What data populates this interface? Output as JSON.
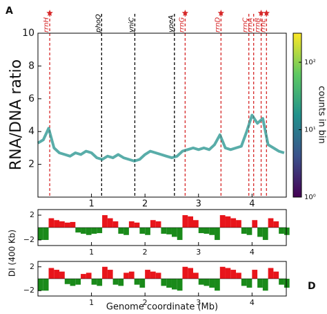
{
  "chart_data": [
    {
      "type": "line",
      "panel_label": "A",
      "ylabel": "RNA/DNA ratio",
      "color": "#21918c",
      "x": [
        0.0,
        0.1,
        0.2,
        0.3,
        0.4,
        0.5,
        0.6,
        0.7,
        0.8,
        0.9,
        1.0,
        1.1,
        1.2,
        1.3,
        1.4,
        1.5,
        1.6,
        1.7,
        1.8,
        1.9,
        2.0,
        2.1,
        2.2,
        2.3,
        2.4,
        2.5,
        2.6,
        2.7,
        2.8,
        2.9,
        3.0,
        3.1,
        3.2,
        3.3,
        3.4,
        3.5,
        3.6,
        3.7,
        3.8,
        3.9,
        4.0,
        4.1,
        4.2,
        4.3,
        4.4,
        4.5,
        4.6
      ],
      "values": [
        3.3,
        3.5,
        4.2,
        3.0,
        2.7,
        2.6,
        2.5,
        2.7,
        2.6,
        2.8,
        2.7,
        2.4,
        2.3,
        2.5,
        2.4,
        2.6,
        2.4,
        2.3,
        2.2,
        2.3,
        2.6,
        2.8,
        2.7,
        2.6,
        2.5,
        2.4,
        2.5,
        2.8,
        2.9,
        3.0,
        2.9,
        3.0,
        2.9,
        3.2,
        3.8,
        3.0,
        2.9,
        3.0,
        3.1,
        4.0,
        5.0,
        4.5,
        4.8,
        3.2,
        3.0,
        2.8,
        2.7
      ],
      "xlim": [
        0,
        4.64
      ],
      "xticks": [
        1,
        2,
        3,
        4
      ],
      "ylim": [
        0,
        10
      ],
      "yticks": [
        2,
        4,
        6,
        8,
        10
      ],
      "annotations": [
        {
          "x": 0.22,
          "label": "rrnH",
          "color": "#d62728",
          "star": true
        },
        {
          "x": 1.19,
          "label": "phoQ",
          "color": "#000000",
          "star": false
        },
        {
          "x": 1.81,
          "label": "yniC",
          "color": "#000000",
          "star": false
        },
        {
          "x": 2.55,
          "label": "ypeA",
          "color": "#000000",
          "star": false
        },
        {
          "x": 2.75,
          "label": "rrnG",
          "color": "#d62728",
          "star": true
        },
        {
          "x": 3.42,
          "label": "rrnD",
          "color": "#d62728",
          "star": true
        },
        {
          "x": 3.94,
          "label": "rrnC",
          "color": "#d62728",
          "star": false
        },
        {
          "x": 4.03,
          "label": "rrnA",
          "color": "#d62728",
          "star": false
        },
        {
          "x": 4.17,
          "label": "rrnB",
          "color": "#d62728",
          "star": true
        },
        {
          "x": 4.27,
          "label": "rrnE",
          "color": "#d62728",
          "star": true
        }
      ],
      "colorbar": {
        "label": "counts in bin",
        "log": true,
        "lim": [
          1,
          270
        ],
        "ticks": [
          {
            "value": 1,
            "label": "10⁰"
          },
          {
            "value": 10,
            "label": "10¹"
          },
          {
            "value": 100,
            "label": "10²"
          }
        ]
      }
    },
    {
      "type": "bar",
      "ylabel": "DI (400 Kb)",
      "positive_color": "#e8151b",
      "negative_color": "#1a8a1a",
      "x": [
        0.0,
        0.1,
        0.2,
        0.3,
        0.4,
        0.5,
        0.6,
        0.7,
        0.8,
        0.9,
        1.0,
        1.1,
        1.2,
        1.3,
        1.4,
        1.5,
        1.6,
        1.7,
        1.8,
        1.9,
        2.0,
        2.1,
        2.2,
        2.3,
        2.4,
        2.5,
        2.6,
        2.7,
        2.8,
        2.9,
        3.0,
        3.1,
        3.2,
        3.3,
        3.4,
        3.5,
        3.6,
        3.7,
        3.8,
        3.9,
        4.0,
        4.1,
        4.2,
        4.3,
        4.4,
        4.5,
        4.6
      ],
      "values": [
        -2,
        -2,
        1.5,
        1.2,
        1.0,
        0.8,
        0.9,
        -0.8,
        -1.0,
        -1.2,
        -1.0,
        -0.9,
        2.0,
        1.5,
        1.0,
        -1.0,
        -1.2,
        1.0,
        0.8,
        -1.0,
        -1.2,
        1.2,
        1.0,
        -1.0,
        -1.1,
        -1.5,
        -2.0,
        2.0,
        1.8,
        1.2,
        -0.9,
        -1.0,
        -1.2,
        -2.0,
        2.0,
        1.8,
        1.5,
        1.2,
        -1.0,
        -1.2,
        1.2,
        -1.5,
        -2.0,
        1.5,
        1.0,
        -1.0,
        -1.2
      ],
      "xlim": [
        0,
        4.64
      ],
      "xticks": [
        1,
        2,
        3,
        4
      ],
      "ylim": [
        -2.9,
        2.9
      ],
      "yticks": [
        {
          "value": -2,
          "label": "−2"
        },
        2
      ]
    },
    {
      "type": "bar",
      "panel_label": "D",
      "xlabel": "Genome coordinate (Mb)",
      "positive_color": "#e8151b",
      "negative_color": "#1a8a1a",
      "x": [
        0.0,
        0.1,
        0.2,
        0.3,
        0.4,
        0.5,
        0.6,
        0.7,
        0.8,
        0.9,
        1.0,
        1.1,
        1.2,
        1.3,
        1.4,
        1.5,
        1.6,
        1.7,
        1.8,
        1.9,
        2.0,
        2.1,
        2.2,
        2.3,
        2.4,
        2.5,
        2.6,
        2.7,
        2.8,
        2.9,
        3.0,
        3.1,
        3.2,
        3.3,
        3.4,
        3.5,
        3.6,
        3.7,
        3.8,
        3.9,
        4.0,
        4.1,
        4.2,
        4.3,
        4.4,
        4.5,
        4.6
      ],
      "values": [
        -2,
        -2,
        1.8,
        1.5,
        1.2,
        -0.9,
        -1.2,
        -1.0,
        0.8,
        1.0,
        -1.0,
        -1.2,
        2.0,
        1.5,
        -1.0,
        -1.2,
        1.0,
        1.2,
        -1.0,
        -1.5,
        1.5,
        1.2,
        1.0,
        -1.2,
        -1.5,
        -1.8,
        -2.0,
        2.0,
        1.8,
        1.0,
        -1.0,
        -1.2,
        -1.5,
        -2.0,
        2.0,
        1.8,
        1.5,
        1.0,
        -1.2,
        -1.5,
        1.5,
        -1.5,
        -2.0,
        1.8,
        1.2,
        -1.0,
        -1.5
      ],
      "xlim": [
        0,
        4.64
      ],
      "xticks": [
        1,
        2,
        3,
        4
      ],
      "ylim": [
        -2.9,
        2.9
      ],
      "yticks": [
        {
          "value": -2,
          "label": "−2"
        },
        2
      ]
    }
  ]
}
